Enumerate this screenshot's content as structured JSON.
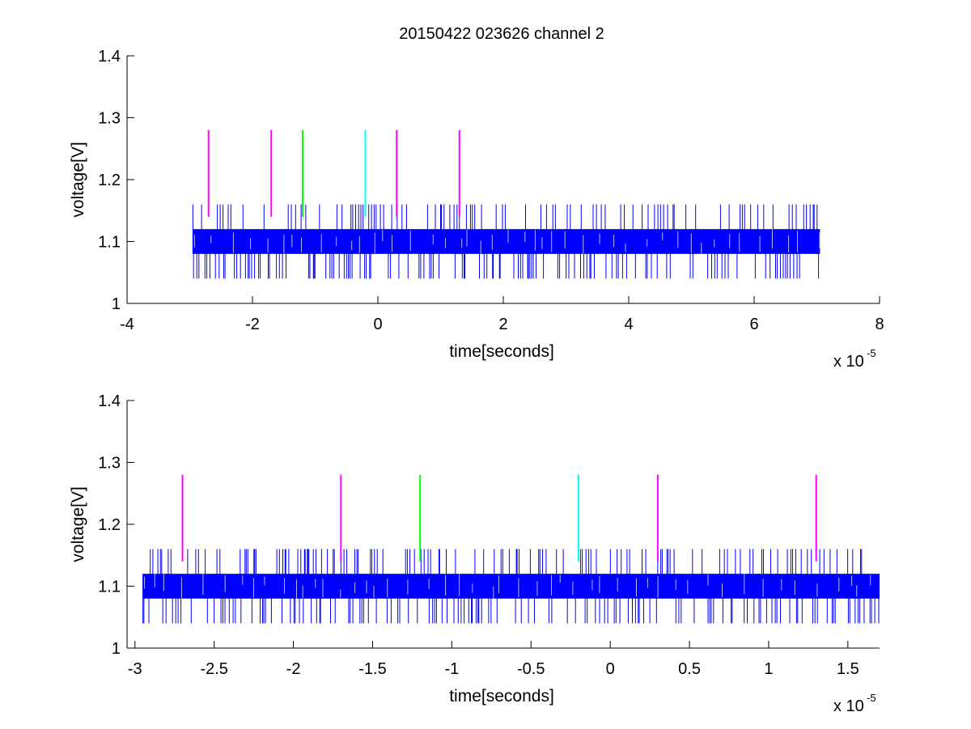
{
  "figure": {
    "title": "20150422 023626 channel 2"
  },
  "chart_data": [
    {
      "type": "line",
      "xlabel": "time[seconds]",
      "ylabel": "voltage[V]",
      "x_multiplier": "x 10",
      "x_multiplier_exponent": "-5",
      "xlim": [
        -4,
        8
      ],
      "ylim": [
        1,
        1.4
      ],
      "xticks": [
        -4,
        -2,
        0,
        2,
        4,
        6,
        8
      ],
      "xtick_labels": [
        "-4",
        "-2",
        "0",
        "2",
        "4",
        "6",
        "8"
      ],
      "yticks": [
        1,
        1.1,
        1.2,
        1.3,
        1.4
      ],
      "ytick_labels": [
        "1",
        "1.1",
        "1.2",
        "1.3",
        "1.4"
      ],
      "signal": {
        "color": "#0000ff",
        "x_range": [
          -2.95,
          7.05
        ],
        "band": [
          1.08,
          1.12
        ],
        "spike_high": 1.16,
        "spike_low": 1.04
      },
      "markers": [
        {
          "x": -2.7,
          "y_range": [
            1.14,
            1.28
          ],
          "color": "#ff00ff"
        },
        {
          "x": -1.7,
          "y_range": [
            1.14,
            1.28
          ],
          "color": "#ff00ff"
        },
        {
          "x": -1.2,
          "y_range": [
            1.14,
            1.28
          ],
          "color": "#00ff00"
        },
        {
          "x": -0.2,
          "y_range": [
            1.14,
            1.28
          ],
          "color": "#00ffff"
        },
        {
          "x": 0.3,
          "y_range": [
            1.14,
            1.28
          ],
          "color": "#ff00ff"
        },
        {
          "x": 1.3,
          "y_range": [
            1.14,
            1.28
          ],
          "color": "#ff00ff"
        }
      ]
    },
    {
      "type": "line",
      "xlabel": "time[seconds]",
      "ylabel": "voltage[V]",
      "x_multiplier": "x 10",
      "x_multiplier_exponent": "-5",
      "xlim": [
        -3.05,
        1.7
      ],
      "ylim": [
        1,
        1.4
      ],
      "xticks": [
        -3,
        -2.5,
        -2,
        -1.5,
        -1,
        -0.5,
        0,
        0.5,
        1,
        1.5
      ],
      "xtick_labels": [
        "-3",
        "-2.5",
        "-2",
        "-1.5",
        "-1",
        "-0.5",
        "0",
        "0.5",
        "1",
        "1.5"
      ],
      "yticks": [
        1,
        1.1,
        1.2,
        1.3,
        1.4
      ],
      "ytick_labels": [
        "1",
        "1.1",
        "1.2",
        "1.3",
        "1.4"
      ],
      "signal": {
        "color": "#0000ff",
        "x_range": [
          -2.95,
          1.7
        ],
        "band": [
          1.08,
          1.12
        ],
        "spike_high": 1.16,
        "spike_low": 1.04
      },
      "markers": [
        {
          "x": -2.7,
          "y_range": [
            1.14,
            1.28
          ],
          "color": "#ff00ff"
        },
        {
          "x": -1.7,
          "y_range": [
            1.14,
            1.28
          ],
          "color": "#ff00ff"
        },
        {
          "x": -1.2,
          "y_range": [
            1.14,
            1.28
          ],
          "color": "#00ff00"
        },
        {
          "x": -0.2,
          "y_range": [
            1.14,
            1.28
          ],
          "color": "#00ffff"
        },
        {
          "x": 0.3,
          "y_range": [
            1.14,
            1.28
          ],
          "color": "#ff00ff"
        },
        {
          "x": 1.3,
          "y_range": [
            1.14,
            1.28
          ],
          "color": "#ff00ff"
        }
      ]
    }
  ]
}
